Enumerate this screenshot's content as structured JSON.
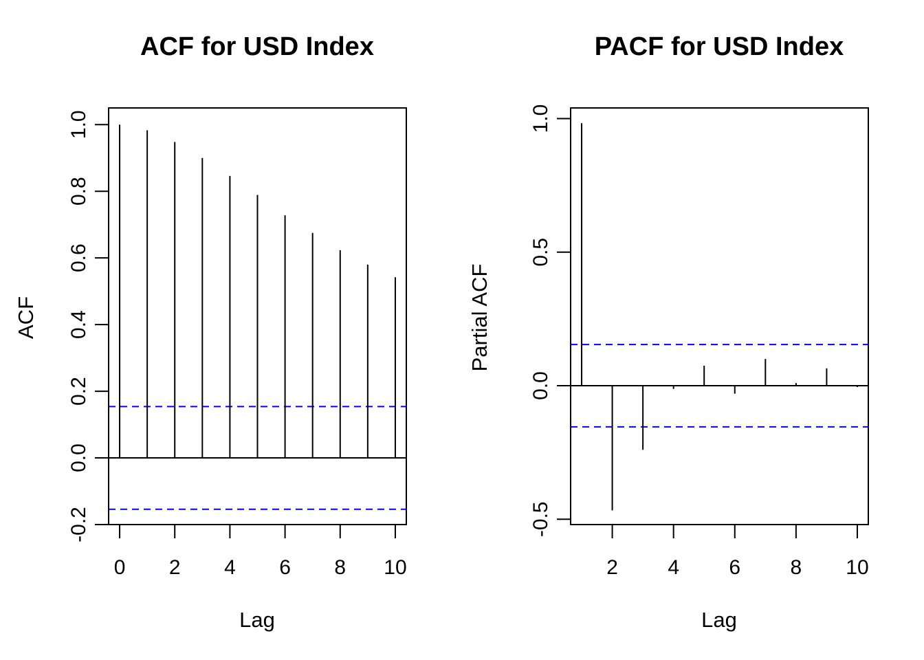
{
  "chart_data": [
    {
      "type": "bar",
      "title": "ACF for USD Index",
      "xlabel": "Lag",
      "ylabel": "ACF",
      "xlim": [
        -0.4,
        10.4
      ],
      "ylim": [
        -0.2,
        1.05
      ],
      "x_ticks": [
        0,
        2,
        4,
        6,
        8,
        10
      ],
      "y_ticks": [
        -0.2,
        0.0,
        0.2,
        0.4,
        0.6,
        0.8,
        1.0
      ],
      "y_tick_labels": [
        "-0.2",
        "0.0",
        "0.2",
        "0.4",
        "0.6",
        "0.8",
        "1.0"
      ],
      "x": [
        0,
        1,
        2,
        3,
        4,
        5,
        6,
        7,
        8,
        9,
        10
      ],
      "values": [
        1.0,
        0.983,
        0.948,
        0.9,
        0.846,
        0.789,
        0.728,
        0.675,
        0.623,
        0.58,
        0.542
      ],
      "confidence_bound": 0.154,
      "line_color": "#000000",
      "bound_color": "#0000ff"
    },
    {
      "type": "bar",
      "title": "PACF for USD Index",
      "xlabel": "Lag",
      "ylabel": "Partial ACF",
      "xlim": [
        0.64,
        10.36
      ],
      "ylim": [
        -0.52,
        1.04
      ],
      "x_ticks": [
        2,
        4,
        6,
        8,
        10
      ],
      "y_ticks": [
        -0.5,
        0.0,
        0.5,
        1.0
      ],
      "y_tick_labels": [
        "-0.5",
        "0.0",
        "0.5",
        "1.0"
      ],
      "x": [
        1,
        2,
        3,
        4,
        5,
        6,
        7,
        8,
        9,
        10
      ],
      "values": [
        0.983,
        -0.467,
        -0.24,
        -0.012,
        0.075,
        -0.03,
        0.1,
        0.01,
        0.065,
        -0.005
      ],
      "confidence_bound": 0.154,
      "line_color": "#000000",
      "bound_color": "#0000ff"
    }
  ]
}
